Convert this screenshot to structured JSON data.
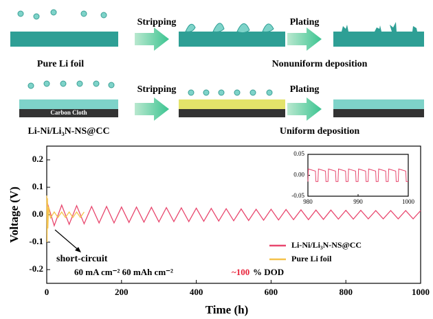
{
  "schematic": {
    "stripping_top": "Stripping",
    "plating_top": "Plating",
    "stripping_bottom": "Stripping",
    "plating_bottom": "Plating",
    "pure_label": "Pure Li foil",
    "nonuniform": "Nonuniform deposition",
    "carbon_cloth": "Carbon Cloth",
    "composite_label": "Li-Ni/Li₃N-NS@CC",
    "uniform": "Uniform deposition"
  },
  "chart_data": {
    "type": "line",
    "xlabel": "Time (h)",
    "ylabel": "Voltage (V)",
    "xlim": [
      0,
      1000
    ],
    "xticks": [
      0,
      200,
      400,
      600,
      800,
      1000
    ],
    "ylim": [
      -0.25,
      0.25
    ],
    "yticks": [
      -0.2,
      -0.1,
      {
        "value": 0,
        "label": "0.0"
      },
      0.1,
      0.2
    ],
    "legend": "lower right",
    "series": [
      {
        "name": "Li-Ni/Li₃N-NS@CC",
        "color": "#e8476e",
        "x": [
          0,
          20,
          40,
          60,
          80,
          100,
          120,
          140,
          160,
          180,
          200,
          220,
          240,
          260,
          280,
          300,
          320,
          340,
          360,
          380,
          400,
          420,
          440,
          460,
          480,
          500,
          520,
          540,
          560,
          580,
          600,
          620,
          640,
          660,
          680,
          700,
          720,
          740,
          760,
          780,
          800,
          820,
          840,
          860,
          880,
          900,
          920,
          940,
          960,
          980,
          1000
        ],
        "values": [
          0.05,
          -0.04,
          0.035,
          -0.035,
          0.033,
          -0.033,
          0.03,
          -0.03,
          0.03,
          -0.03,
          0.028,
          -0.028,
          0.028,
          -0.027,
          0.027,
          -0.026,
          0.026,
          -0.025,
          0.025,
          -0.025,
          0.024,
          -0.024,
          0.023,
          -0.023,
          0.022,
          -0.022,
          0.021,
          -0.021,
          0.02,
          -0.02,
          0.02,
          -0.019,
          0.019,
          -0.018,
          0.018,
          -0.018,
          0.017,
          -0.017,
          0.017,
          -0.016,
          0.016,
          -0.016,
          0.016,
          -0.015,
          0.015,
          -0.015,
          0.015,
          -0.015,
          0.015,
          -0.015,
          0.015
        ]
      },
      {
        "name": "Pure Li foil",
        "color": "#f5c24a",
        "x": [
          0,
          1,
          2,
          3,
          5,
          10,
          20,
          30,
          40,
          50,
          60,
          70,
          80,
          90,
          100
        ],
        "values": [
          0.07,
          -0.1,
          0.06,
          -0.05,
          0.03,
          -0.012,
          0.01,
          -0.01,
          0.01,
          -0.01,
          0.01,
          -0.01,
          0.01,
          -0.01,
          0.01
        ]
      }
    ],
    "annotations": {
      "short_circuit": "short-circuit",
      "condition": "60 mA cm⁻² 60 mAh cm⁻²",
      "dod_value": "~100",
      "dod_text": "% DOD"
    },
    "inset": {
      "xlim": [
        980,
        1000
      ],
      "xticks": [
        980,
        990,
        1000
      ],
      "ylim": [
        -0.05,
        0.05
      ],
      "yticks": [
        {
          "value": -0.05,
          "label": "-0.05"
        },
        {
          "value": 0,
          "label": "0.00"
        },
        0.05
      ],
      "color": "#e8476e",
      "x": [
        980,
        980.1,
        981.5,
        981.6,
        982,
        982.1,
        983.5,
        983.6,
        984,
        984.1,
        985.5,
        985.6,
        986,
        986.1,
        987.5,
        987.6,
        988,
        988.1,
        989.5,
        989.6,
        990,
        990.1,
        991.5,
        991.6,
        992,
        992.1,
        993.5,
        993.6,
        994,
        994.1,
        995.5,
        995.6,
        996,
        996.1,
        997.5,
        997.6,
        998,
        998.1,
        999.5,
        999.6,
        1000
      ],
      "values": [
        -0.015,
        0.015,
        0.01,
        -0.015,
        -0.015,
        0.015,
        0.01,
        -0.015,
        -0.015,
        0.015,
        0.01,
        -0.015,
        -0.015,
        0.015,
        0.01,
        -0.015,
        -0.015,
        0.015,
        0.01,
        -0.015,
        -0.015,
        0.015,
        0.01,
        -0.015,
        -0.015,
        0.015,
        0.01,
        -0.015,
        -0.015,
        0.015,
        0.01,
        -0.015,
        -0.015,
        0.015,
        0.01,
        -0.015,
        -0.015,
        0.015,
        0.01,
        -0.015,
        -0.015
      ]
    }
  }
}
